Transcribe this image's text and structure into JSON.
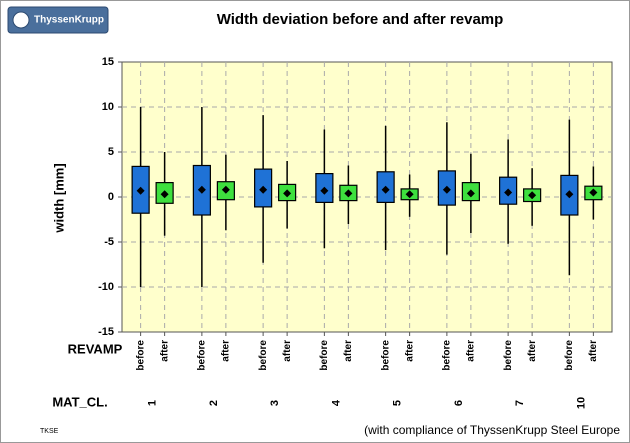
{
  "header": {
    "logo": "ThyssenKrupp"
  },
  "chart_data": {
    "type": "box",
    "title": "Width deviation before and after revamp",
    "y_label": "width [mm]",
    "row_labels": {
      "revamp": "REVAMP",
      "mat_cl": "MAT_CL."
    },
    "categories": [
      "1",
      "2",
      "3",
      "4",
      "5",
      "6",
      "7",
      "10"
    ],
    "series": [
      {
        "name": "before",
        "color": "#1f72d6",
        "low": [
          -10,
          -10,
          -7.3,
          -5.7,
          -5.9,
          -6.4,
          -5.2,
          -8.7
        ],
        "q1": [
          -1.8,
          -2,
          -1.1,
          -0.6,
          -0.6,
          -0.9,
          -0.8,
          -2
        ],
        "median": [
          0.7,
          0.8,
          0.8,
          0.7,
          0.8,
          0.8,
          0.5,
          0.3
        ],
        "q3": [
          3.4,
          3.5,
          3.1,
          2.6,
          2.8,
          2.9,
          2.2,
          2.4
        ],
        "high": [
          10,
          10,
          9.1,
          7.5,
          7.9,
          8.3,
          6.4,
          8.6
        ]
      },
      {
        "name": "after",
        "color": "#3ee03e",
        "low": [
          -4.3,
          -3.7,
          -3.5,
          -3,
          -2.2,
          -4,
          -3.2,
          -2.5
        ],
        "q1": [
          -0.7,
          -0.3,
          -0.4,
          -0.4,
          -0.3,
          -0.4,
          -0.5,
          -0.3
        ],
        "median": [
          0.3,
          0.8,
          0.4,
          0.4,
          0.3,
          0.4,
          0.2,
          0.5
        ],
        "q3": [
          1.6,
          1.7,
          1.4,
          1.3,
          0.9,
          1.6,
          0.9,
          1.2
        ],
        "high": [
          5,
          4.7,
          4,
          3.5,
          2.5,
          4.8,
          3.2,
          3.4
        ]
      }
    ],
    "ylim": [
      -15,
      15
    ],
    "yticks": [
      -15,
      -10,
      -5,
      0,
      5,
      10,
      15
    ],
    "grid": true
  },
  "footer": {
    "left": "TKSE",
    "right": "(with compliance of ThyssenKrupp Steel Europe"
  }
}
